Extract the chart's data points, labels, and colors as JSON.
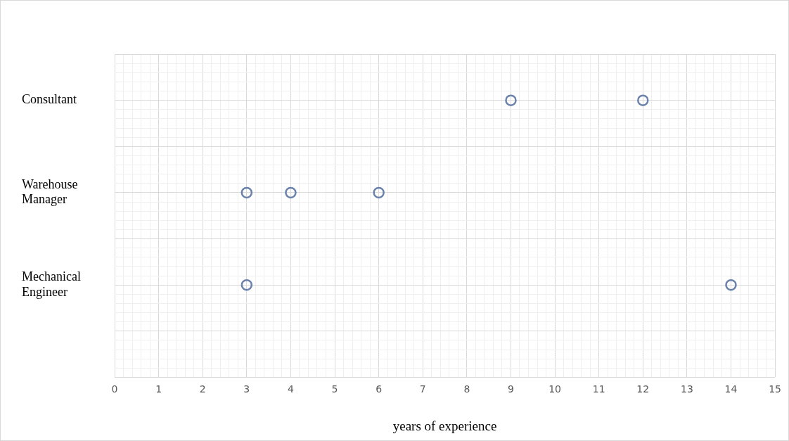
{
  "chart_data": {
    "type": "scatter",
    "orientation": "horizontal",
    "xlabel": "years of experience",
    "categories": [
      "Consultant",
      "Warehouse Manager",
      "Mechanical Engineer"
    ],
    "series": [
      {
        "color": "#6a82ac",
        "values": [
          9,
          3,
          3
        ]
      },
      {
        "color": "#6a82ac",
        "values": [
          12,
          4,
          14
        ]
      },
      {
        "color": "#6a82ac",
        "values": [
          null,
          6,
          null
        ]
      }
    ],
    "marker": "circle",
    "xlim": [
      0,
      15
    ],
    "xticks": [
      0,
      1,
      2,
      3,
      4,
      5,
      6,
      7,
      8,
      9,
      10,
      11,
      12,
      13,
      14,
      15
    ],
    "grid": true,
    "legend": false
  }
}
